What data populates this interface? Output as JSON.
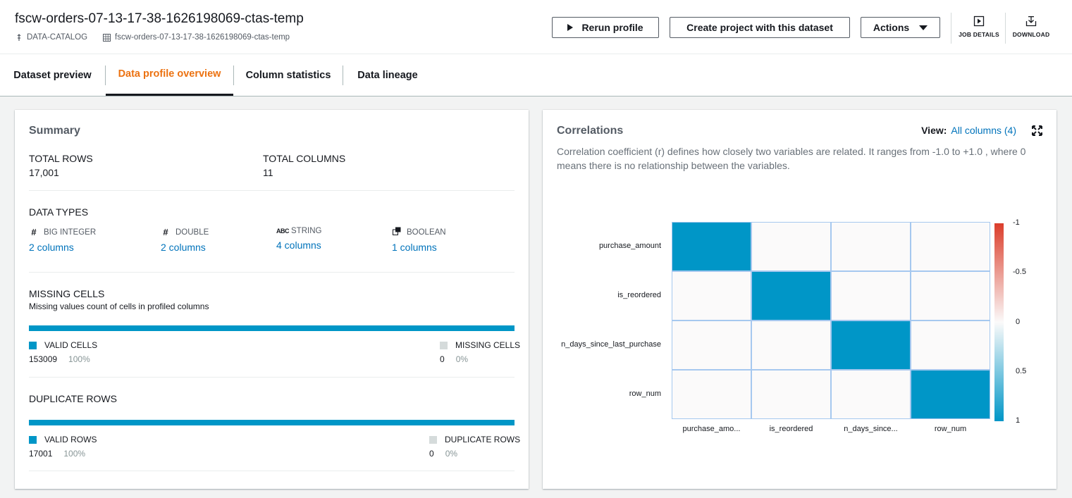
{
  "header": {
    "title": "fscw-orders-07-13-17-38-1626198069-ctas-temp",
    "breadcrumb": [
      "DATA-CATALOG",
      "fscw-orders-07-13-17-38-1626198069-ctas-temp"
    ],
    "buttons": {
      "rerun": "Rerun profile",
      "create": "Create project with this dataset",
      "actions": "Actions"
    },
    "tools": {
      "job_details": "JOB DETAILS",
      "download": "DOWNLOAD"
    }
  },
  "tabs": [
    "Dataset preview",
    "Data profile overview",
    "Column statistics",
    "Data lineage"
  ],
  "active_tab": "Data profile overview",
  "summary": {
    "title": "Summary",
    "total_rows_label": "TOTAL ROWS",
    "total_rows": "17,001",
    "total_columns_label": "TOTAL COLUMNS",
    "total_columns": "11",
    "data_types_label": "DATA TYPES",
    "data_types": [
      {
        "icon": "hash-icon",
        "name": "BIG INTEGER",
        "count": "2 columns"
      },
      {
        "icon": "hash-icon",
        "name": "DOUBLE",
        "count": "2 columns"
      },
      {
        "icon": "abc-icon",
        "name": "STRING",
        "count": "4 columns"
      },
      {
        "icon": "boolean-icon",
        "name": "BOOLEAN",
        "count": "1 columns"
      }
    ],
    "missing": {
      "title": "MISSING CELLS",
      "subtitle": "Missing values count of cells in profiled columns",
      "valid_label": "VALID CELLS",
      "valid_count": "153009",
      "valid_pct": "100%",
      "missing_label": "MISSING CELLS",
      "missing_count": "0",
      "missing_pct": "0%",
      "fill_fraction": 1.0
    },
    "duplicates": {
      "title": "DUPLICATE ROWS",
      "valid_label": "VALID ROWS",
      "valid_count": "17001",
      "valid_pct": "100%",
      "dup_label": "DUPLICATE ROWS",
      "dup_count": "0",
      "dup_pct": "0%",
      "fill_fraction": 1.0
    }
  },
  "correlations": {
    "title": "Correlations",
    "view_label": "View:",
    "view_value": "All columns (4)",
    "description": "Correlation coefficient (r) defines how closely two variables are related. It ranges from -1.0 to +1.0 , where 0 means there is no relationship between the variables."
  },
  "chart_data": {
    "type": "heatmap",
    "y_labels": [
      "purchase_amount",
      "is_reordered",
      "n_days_since_last_purchase",
      "row_num"
    ],
    "x_labels": [
      "purchase_amo...",
      "is_reordered",
      "n_days_since...",
      "row_num"
    ],
    "values": [
      [
        1,
        0,
        0,
        0
      ],
      [
        0,
        1,
        0,
        0
      ],
      [
        0,
        0,
        1,
        0
      ],
      [
        0,
        0,
        0,
        1
      ]
    ],
    "colorbar_ticks": [
      "-1",
      "-0.5",
      "0",
      "0.5",
      "1"
    ],
    "colorbar_range": [
      -1,
      1
    ],
    "colors": {
      "negative": "#db3d2b",
      "zero": "#fbfafa",
      "positive": "#0096c7"
    }
  },
  "colors": {
    "accent": "#0096c7",
    "link": "#0073bb",
    "active_tab": "#ec7211",
    "missing": "#d5dbdb"
  }
}
